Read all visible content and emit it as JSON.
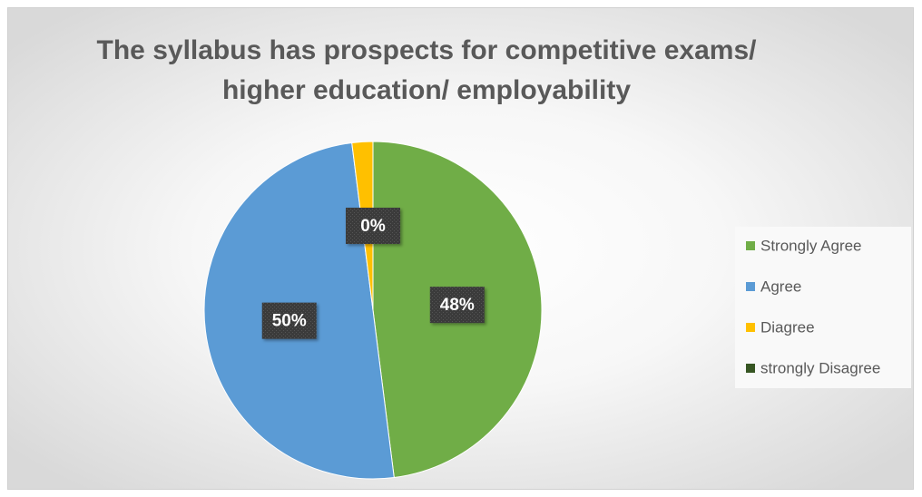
{
  "chart_data": {
    "type": "pie",
    "title": [
      "The syllabus has prospects for competitive exams/",
      "higher education/ employability"
    ],
    "categories": [
      "Strongly Agree",
      "Agree",
      "Diagree",
      "strongly Disagree"
    ],
    "values": [
      48,
      50,
      2,
      0
    ],
    "value_labels": [
      "48%",
      "50%",
      null,
      "0%"
    ],
    "colors": [
      "#70ad47",
      "#5b9bd5",
      "#ffc000",
      "#375623"
    ],
    "legend": "right"
  }
}
